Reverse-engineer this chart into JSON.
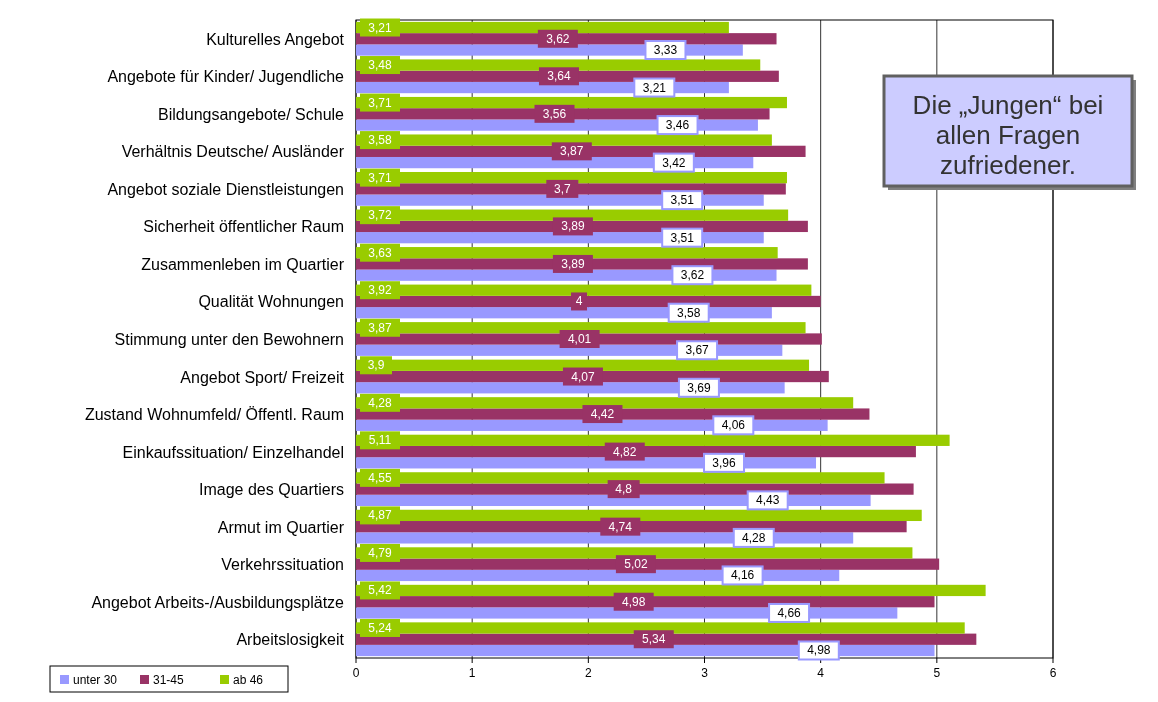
{
  "chart_data": {
    "type": "bar",
    "orientation": "horizontal",
    "categories": [
      "Kulturelles Angebot",
      "Angebote für Kinder/ Jugendliche",
      "Bildungsangebote/ Schule",
      "Verhältnis Deutsche/ Ausländer",
      "Angebot soziale Dienstleistungen",
      "Sicherheit öffentlicher Raum",
      "Zusammenleben im Quartier",
      "Qualität Wohnungen",
      "Stimmung unter den Bewohnern",
      "Angebot Sport/ Freizeit",
      "Zustand Wohnumfeld/ Öffentl. Raum",
      "Einkaufssituation/ Einzelhandel",
      "Image des Quartiers",
      "Armut im Quartier",
      "Verkehrssituation",
      "Angebot Arbeits-/Ausbildungsplätze",
      "Arbeitslosigkeit"
    ],
    "series": [
      {
        "name": "unter 30",
        "color": "#9999ff",
        "values": [
          3.33,
          3.21,
          3.46,
          3.42,
          3.51,
          3.51,
          3.62,
          3.58,
          3.67,
          3.69,
          4.06,
          3.96,
          4.43,
          4.28,
          4.16,
          4.66,
          4.98
        ],
        "value_labels": [
          "3,33",
          "3,21",
          "3,46",
          "3,42",
          "3,51",
          "3,51",
          "3,62",
          "3,58",
          "3,67",
          "3,69",
          "4,06",
          "3,96",
          "4,43",
          "4,28",
          "4,16",
          "4,66",
          "4,98"
        ]
      },
      {
        "name": "31-45",
        "color": "#993366",
        "values": [
          3.62,
          3.64,
          3.56,
          3.87,
          3.7,
          3.89,
          3.89,
          4,
          4.01,
          4.07,
          4.42,
          4.82,
          4.8,
          4.74,
          5.02,
          4.98,
          5.34
        ],
        "value_labels": [
          "3,62",
          "3,64",
          "3,56",
          "3,87",
          "3,7",
          "3,89",
          "3,89",
          "4",
          "4,01",
          "4,07",
          "4,42",
          "4,82",
          "4,8",
          "4,74",
          "5,02",
          "4,98",
          "5,34"
        ]
      },
      {
        "name": "ab 46",
        "color": "#99cc00",
        "values": [
          3.21,
          3.48,
          3.71,
          3.58,
          3.71,
          3.72,
          3.63,
          3.92,
          3.87,
          3.9,
          4.28,
          5.11,
          4.55,
          4.87,
          4.79,
          5.42,
          5.24
        ],
        "value_labels": [
          "3,21",
          "3,48",
          "3,71",
          "3,58",
          "3,71",
          "3,72",
          "3,63",
          "3,92",
          "3,87",
          "3,9",
          "4,28",
          "5,11",
          "4,55",
          "4,87",
          "4,79",
          "5,42",
          "5,24"
        ]
      }
    ],
    "xlim": [
      0,
      6
    ],
    "xticks": [
      0,
      1,
      2,
      3,
      4,
      5,
      6
    ],
    "grid": "x",
    "legend": "bottom left",
    "annotations": [
      "Die „Jungen“ bei allen Fragen zufriedener."
    ]
  }
}
